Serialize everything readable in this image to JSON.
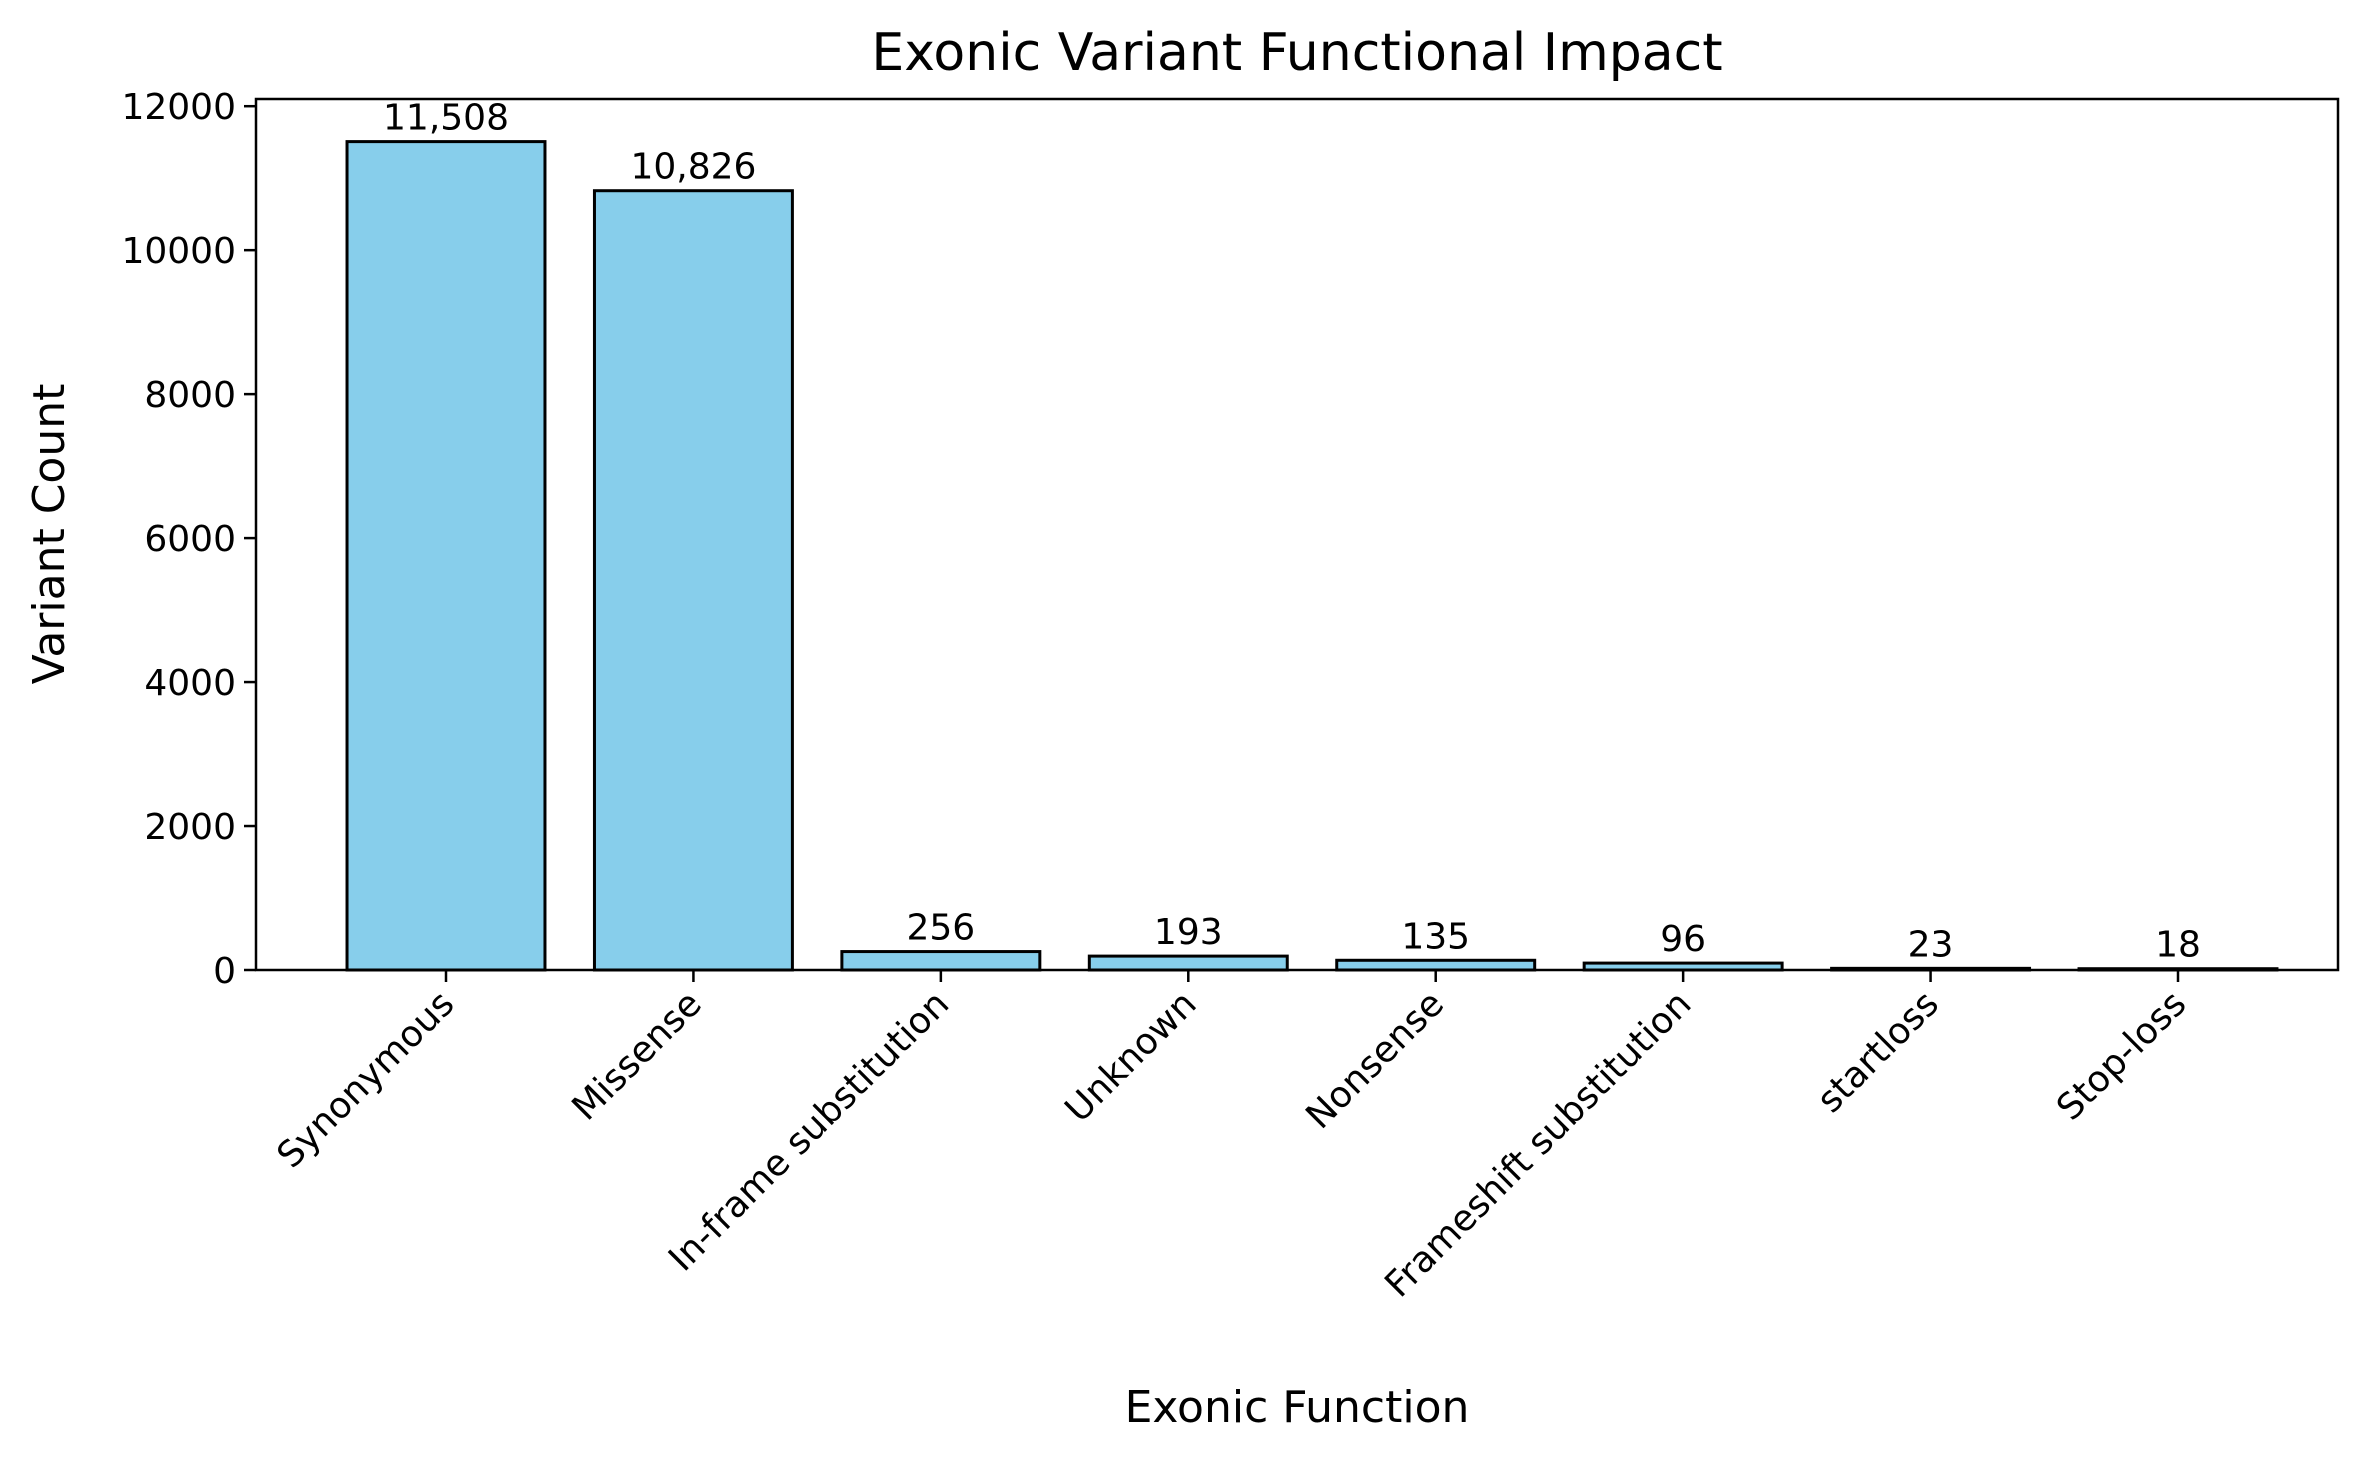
{
  "chart_data": {
    "type": "bar",
    "title": "Exonic Variant Functional Impact",
    "xlabel": "Exonic Function",
    "ylabel": "Variant Count",
    "categories": [
      "Synonymous",
      "Missense",
      "In-frame substitution",
      "Unknown",
      "Nonsense",
      "Frameshift substitution",
      "startloss",
      "Stop-loss"
    ],
    "values": [
      11508,
      10826,
      256,
      193,
      135,
      96,
      23,
      18
    ],
    "data_labels": [
      "11,508",
      "10,826",
      "256",
      "193",
      "135",
      "96",
      "23",
      "18"
    ],
    "ylim": [
      0,
      12100
    ],
    "yticks": [
      0,
      2000,
      4000,
      6000,
      8000,
      10000,
      12000
    ],
    "grid": false,
    "legend": "none",
    "colors": {
      "bar_fill": "#87CEEB",
      "bar_edge": "#000000"
    }
  }
}
